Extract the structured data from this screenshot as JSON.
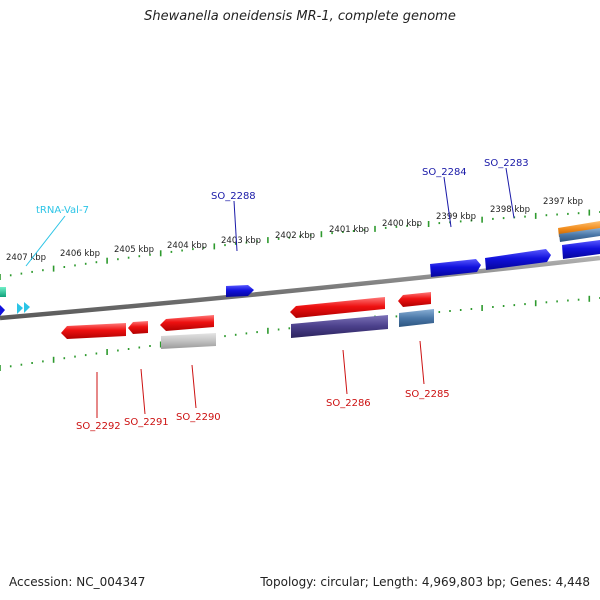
{
  "title": "Shewanella oneidensis MR-1, complete genome",
  "footer": {
    "accession": "Accession: NC_004347",
    "summary": "Topology: circular; Length: 4,969,803 bp; Genes: 4,448"
  },
  "scale_labels": [
    "2407 kbp",
    "2406 kbp",
    "2405 kbp",
    "2404 kbp",
    "2403 kbp",
    "2402 kbp",
    "2401 kbp",
    "2400 kbp",
    "2399 kbp",
    "2398 kbp",
    "2397 kbp"
  ],
  "upper_labels": [
    {
      "text": "tRNA-Val-7",
      "color": "#2bc4e6"
    },
    {
      "text": "SO_2288",
      "color": "#1a1aa8"
    },
    {
      "text": "SO_2284",
      "color": "#1a1aa8"
    },
    {
      "text": "SO_2283",
      "color": "#1a1aa8"
    }
  ],
  "lower_labels": [
    {
      "text": "SO_2292",
      "color": "#cc1111"
    },
    {
      "text": "SO_2291",
      "color": "#cc1111"
    },
    {
      "text": "SO_2290",
      "color": "#cc1111"
    },
    {
      "text": "SO_2286",
      "color": "#cc1111"
    },
    {
      "text": "SO_2285",
      "color": "#cc1111"
    }
  ],
  "colors": {
    "backbone": "#7a7a7a",
    "tick": "#2e9a2e",
    "forward_gene": "#1111dd",
    "reverse_gene": "#e80f0f",
    "rna_arrow": "#2bc4e6",
    "pseudo": "#c4c4c4",
    "purple": "#4a3f8a",
    "steel": "#4a78a8",
    "orange": "#f08a1a",
    "teal": "#17c79b"
  }
}
